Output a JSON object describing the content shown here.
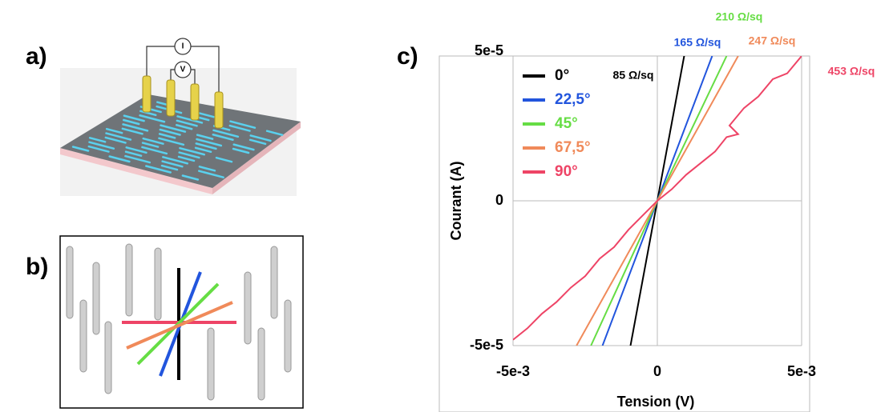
{
  "panels": [
    "a)",
    "b)",
    "c)"
  ],
  "circuit_labels": [
    "I",
    "V"
  ],
  "chart_data": {
    "type": "line",
    "xlabel": "Tension (V)",
    "ylabel": "Courant (A)",
    "xlim": [
      -0.005,
      0.005
    ],
    "ylim": [
      -5e-05,
      5e-05
    ],
    "xticks": [
      {
        "value": -0.005,
        "label": "-5e-3"
      },
      0,
      {
        "value": 0.005,
        "label": "5e-3"
      }
    ],
    "yticks": [
      {
        "value": -5e-05,
        "label": "-5e-5"
      },
      0,
      {
        "value": 5e-05,
        "label": "5e-5"
      }
    ],
    "grid": true,
    "legend": "upper left",
    "series": [
      {
        "name": "0°",
        "color": "#000000",
        "x": [
          -0.00093,
          0,
          0.00093
        ],
        "values": [
          -5e-05,
          0,
          5e-05
        ]
      },
      {
        "name": "22,5°",
        "color": "#2255dd",
        "x": [
          -0.0019,
          0,
          0.0019
        ],
        "values": [
          -5e-05,
          0,
          5e-05
        ]
      },
      {
        "name": "45°",
        "color": "#66dd44",
        "x": [
          -0.0023,
          0,
          0.0024
        ],
        "values": [
          -5e-05,
          0,
          5e-05
        ]
      },
      {
        "name": "67,5°",
        "color": "#f08a5a",
        "x": [
          -0.0028,
          0,
          0.0028
        ],
        "values": [
          -5e-05,
          0,
          5e-05
        ]
      },
      {
        "name": "90°",
        "color": "#ee4466",
        "x": [
          -0.005,
          -0.0045,
          -0.004,
          -0.0035,
          -0.003,
          -0.0025,
          -0.002,
          -0.0015,
          -0.001,
          -0.0005,
          0,
          0.0005,
          0.001,
          0.0015,
          0.002,
          0.0024,
          0.0028,
          0.0025,
          0.003,
          0.0035,
          0.004,
          0.0045,
          0.005
        ],
        "values": [
          -4.8e-05,
          -4.4e-05,
          -3.9e-05,
          -3.5e-05,
          -3e-05,
          -2.6e-05,
          -2e-05,
          -1.6e-05,
          -1e-05,
          -5e-06,
          0,
          4e-06,
          9e-06,
          1.3e-05,
          1.7e-05,
          2.2e-05,
          2.3e-05,
          2.6e-05,
          3.2e-05,
          3.6e-05,
          4.2e-05,
          4.4e-05,
          5e-05
        ]
      }
    ],
    "annotations": [
      {
        "text": "85 Ω/sq",
        "color": "#000000"
      },
      {
        "text": "165 Ω/sq",
        "color": "#2255dd"
      },
      {
        "text": "210 Ω/sq",
        "color": "#66dd44"
      },
      {
        "text": "247 Ω/sq",
        "color": "#f08a5a"
      },
      {
        "text": "453 Ω/sq",
        "color": "#ee4466"
      }
    ]
  }
}
